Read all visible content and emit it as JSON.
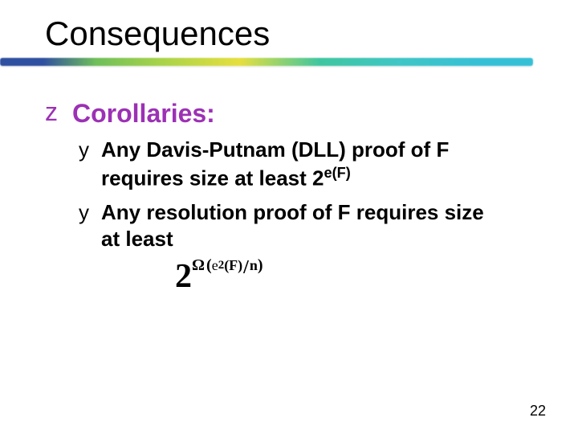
{
  "slide": {
    "title": "Consequences",
    "page_number": "22"
  },
  "heading": {
    "bullet_glyph": "z",
    "text": "Corollaries:",
    "color": "#9c31b5"
  },
  "bullets": [
    {
      "glyph": "y",
      "line1_a": "Any Davis-Putnam (DLL) proof of ",
      "line1_b": "F",
      "line2_a": "requires size at least  ",
      "expr_base": "2",
      "expr_sup": "e(F)"
    },
    {
      "glyph": "y",
      "line1_a": "Any resolution proof of ",
      "line1_b": "F",
      "line1_c": " requires size",
      "line2_a": "at least"
    }
  ],
  "formula": {
    "base": "2",
    "omega": "Ω",
    "e_term": "e",
    "sup2": "2",
    "argF": "(F)",
    "slash": "/",
    "n": "n"
  },
  "rule_gradient": {
    "stops": [
      "#2f4fa0",
      "#6fbf5a",
      "#a7d34a",
      "#e6df3e",
      "#3fc6a0",
      "#3fc6c6",
      "#36c0d6"
    ]
  },
  "typography": {
    "title_fontsize": 42,
    "heading_fontsize": 32,
    "body_fontsize": 26,
    "pagenum_fontsize": 18,
    "body_weight": "bold"
  }
}
